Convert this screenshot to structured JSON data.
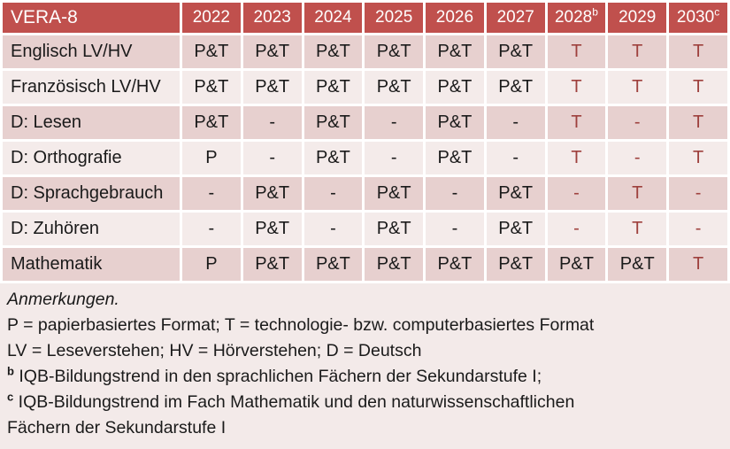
{
  "colors": {
    "header_bg": "#c0504d",
    "header_text": "#ffffff",
    "band_dark": "#e7d0cf",
    "band_light": "#f4ebea",
    "notes_bg": "#f3eae9",
    "red_text": "#9e403d",
    "body_text": "#1a1a1a"
  },
  "table": {
    "title": "VERA-8",
    "years": [
      {
        "label": "2022",
        "sup": ""
      },
      {
        "label": "2023",
        "sup": ""
      },
      {
        "label": "2024",
        "sup": ""
      },
      {
        "label": "2025",
        "sup": ""
      },
      {
        "label": "2026",
        "sup": ""
      },
      {
        "label": "2027",
        "sup": ""
      },
      {
        "label": "2028",
        "sup": "b"
      },
      {
        "label": "2029",
        "sup": ""
      },
      {
        "label": "2030",
        "sup": "c"
      }
    ],
    "rows": [
      {
        "label": "Englisch LV/HV",
        "cells": [
          {
            "text": "P&T",
            "color": "dark"
          },
          {
            "text": "P&T",
            "color": "dark"
          },
          {
            "text": "P&T",
            "color": "dark"
          },
          {
            "text": "P&T",
            "color": "dark"
          },
          {
            "text": "P&T",
            "color": "dark"
          },
          {
            "text": "P&T",
            "color": "dark"
          },
          {
            "text": "T",
            "color": "red"
          },
          {
            "text": "T",
            "color": "red"
          },
          {
            "text": "T",
            "color": "red"
          }
        ]
      },
      {
        "label": "Französisch LV/HV",
        "cells": [
          {
            "text": "P&T",
            "color": "dark"
          },
          {
            "text": "P&T",
            "color": "dark"
          },
          {
            "text": "P&T",
            "color": "dark"
          },
          {
            "text": "P&T",
            "color": "dark"
          },
          {
            "text": "P&T",
            "color": "dark"
          },
          {
            "text": "P&T",
            "color": "dark"
          },
          {
            "text": "T",
            "color": "red"
          },
          {
            "text": "T",
            "color": "red"
          },
          {
            "text": "T",
            "color": "red"
          }
        ]
      },
      {
        "label": "D: Lesen",
        "cells": [
          {
            "text": "P&T",
            "color": "dark"
          },
          {
            "text": "-",
            "color": "dark"
          },
          {
            "text": "P&T",
            "color": "dark"
          },
          {
            "text": "-",
            "color": "dark"
          },
          {
            "text": "P&T",
            "color": "dark"
          },
          {
            "text": "-",
            "color": "dark"
          },
          {
            "text": "T",
            "color": "red"
          },
          {
            "text": "-",
            "color": "red"
          },
          {
            "text": "T",
            "color": "red"
          }
        ]
      },
      {
        "label": "D: Orthografie",
        "cells": [
          {
            "text": "P",
            "color": "dark"
          },
          {
            "text": "-",
            "color": "dark"
          },
          {
            "text": "P&T",
            "color": "dark"
          },
          {
            "text": "-",
            "color": "dark"
          },
          {
            "text": "P&T",
            "color": "dark"
          },
          {
            "text": "-",
            "color": "dark"
          },
          {
            "text": "T",
            "color": "red"
          },
          {
            "text": "-",
            "color": "red"
          },
          {
            "text": "T",
            "color": "red"
          }
        ]
      },
      {
        "label": "D: Sprachgebrauch",
        "cells": [
          {
            "text": "-",
            "color": "dark"
          },
          {
            "text": "P&T",
            "color": "dark"
          },
          {
            "text": "-",
            "color": "dark"
          },
          {
            "text": "P&T",
            "color": "dark"
          },
          {
            "text": "-",
            "color": "dark"
          },
          {
            "text": "P&T",
            "color": "dark"
          },
          {
            "text": "-",
            "color": "red"
          },
          {
            "text": "T",
            "color": "red"
          },
          {
            "text": "-",
            "color": "red"
          }
        ]
      },
      {
        "label": "D: Zuhören",
        "cells": [
          {
            "text": "-",
            "color": "dark"
          },
          {
            "text": "P&T",
            "color": "dark"
          },
          {
            "text": "-",
            "color": "dark"
          },
          {
            "text": "P&T",
            "color": "dark"
          },
          {
            "text": "-",
            "color": "dark"
          },
          {
            "text": "P&T",
            "color": "dark"
          },
          {
            "text": "-",
            "color": "red"
          },
          {
            "text": "T",
            "color": "red"
          },
          {
            "text": "-",
            "color": "red"
          }
        ]
      },
      {
        "label": "Mathematik",
        "cells": [
          {
            "text": "P",
            "color": "dark"
          },
          {
            "text": "P&T",
            "color": "dark"
          },
          {
            "text": "P&T",
            "color": "dark"
          },
          {
            "text": "P&T",
            "color": "dark"
          },
          {
            "text": "P&T",
            "color": "dark"
          },
          {
            "text": "P&T",
            "color": "dark"
          },
          {
            "text": "P&T",
            "color": "dark"
          },
          {
            "text": "P&T",
            "color": "dark"
          },
          {
            "text": "T",
            "color": "red"
          }
        ]
      }
    ]
  },
  "notes": {
    "heading": "Anmerkungen.",
    "line_formats": "P = papierbasiertes Format; T = technologie- bzw. computerbasiertes Format",
    "line_abbrev": "LV = Leseverstehen; HV = Hörverstehen; D = Deutsch",
    "fn_b": {
      "sup": "b",
      "text": "IQB-Bildungstrend in den sprachlichen Fächern der Sekundarstufe I;"
    },
    "fn_c": {
      "sup": "c",
      "text": "IQB-Bildungstrend im Fach Mathematik und den naturwissenschaftlichen Fächern der Sekundarstufe I"
    }
  }
}
